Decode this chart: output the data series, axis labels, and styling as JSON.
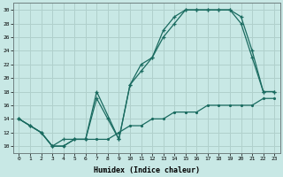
{
  "xlabel": "Humidex (Indice chaleur)",
  "xlim": [
    -0.5,
    23.5
  ],
  "ylim": [
    9.0,
    31.0
  ],
  "xticks": [
    0,
    1,
    2,
    3,
    4,
    5,
    6,
    7,
    8,
    9,
    10,
    11,
    12,
    13,
    14,
    15,
    16,
    17,
    18,
    19,
    20,
    21,
    22,
    23
  ],
  "yticks": [
    10,
    12,
    14,
    16,
    18,
    20,
    22,
    24,
    26,
    28,
    30
  ],
  "bg_color": "#c8e8e5",
  "grid_color": "#b0d0cc",
  "line_color": "#1a6b60",
  "line1_x": [
    0,
    1,
    2,
    3,
    4,
    5,
    6,
    7,
    9,
    10,
    11,
    12,
    13,
    14,
    15,
    16,
    17,
    18,
    19,
    20,
    21,
    22,
    23
  ],
  "line1_y": [
    14,
    13,
    12,
    10,
    11,
    11,
    11,
    18,
    11,
    19,
    22,
    23,
    27,
    29,
    30,
    30,
    30,
    30,
    30,
    28,
    23,
    18,
    18
  ],
  "line2_x": [
    0,
    1,
    2,
    3,
    4,
    5,
    6,
    7,
    8,
    9,
    10,
    11,
    12,
    13,
    14,
    15,
    16,
    17,
    18,
    19,
    20,
    21,
    22,
    23
  ],
  "line2_y": [
    14,
    13,
    12,
    10,
    10,
    11,
    11,
    17,
    14,
    11,
    19,
    21,
    23,
    26,
    28,
    30,
    30,
    30,
    30,
    30,
    29,
    24,
    18,
    18
  ],
  "line3_x": [
    0,
    1,
    2,
    3,
    4,
    5,
    6,
    7,
    8,
    9,
    10,
    11,
    12,
    13,
    14,
    15,
    16,
    17,
    18,
    19,
    20,
    21,
    22,
    23
  ],
  "line3_y": [
    14,
    13,
    12,
    10,
    10,
    11,
    11,
    11,
    11,
    12,
    13,
    13,
    14,
    14,
    15,
    15,
    15,
    16,
    16,
    16,
    16,
    16,
    17,
    17
  ]
}
